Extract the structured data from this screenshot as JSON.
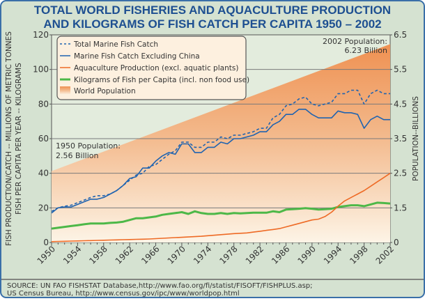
{
  "chart_data": {
    "type": "line",
    "title": [
      "TOTAL WORLD FISHERIES AND AQUACULTURE PRODUCTION",
      "AND KILOGRAMS OF FISH CATCH PER CAPITA 1950 – 2002"
    ],
    "ylabel_left": [
      "FISH PRODUCTION/CATCH -- MILLIONS OF METRIC TONNES",
      "FISH PER CAPITA PER YEAR -- KILOGRAMS"
    ],
    "ylabel_right": "POPULATION--BILLIONS",
    "xlim": [
      1950,
      2002
    ],
    "ylim_left": [
      0,
      120
    ],
    "yticks_left": [
      "0",
      "20",
      "40",
      "60",
      "80",
      "100",
      "120"
    ],
    "yticks_right": [
      "0",
      "1.5",
      "2.5",
      "3.5",
      "4.5",
      "5.5",
      "6.5"
    ],
    "xticks": [
      "1950",
      "1954",
      "1958",
      "1962",
      "1966",
      "1970",
      "1974",
      "1978",
      "1982",
      "1986",
      "1990",
      "1994",
      "1998",
      "2002"
    ],
    "grid": true,
    "legend_position": "top-left",
    "x": [
      1950,
      1951,
      1952,
      1953,
      1954,
      1955,
      1956,
      1957,
      1958,
      1959,
      1960,
      1961,
      1962,
      1963,
      1964,
      1965,
      1966,
      1967,
      1968,
      1969,
      1970,
      1971,
      1972,
      1973,
      1974,
      1975,
      1976,
      1977,
      1978,
      1979,
      1980,
      1981,
      1982,
      1983,
      1984,
      1985,
      1986,
      1987,
      1988,
      1989,
      1990,
      1991,
      1992,
      1993,
      1994,
      1995,
      1996,
      1997,
      1998,
      1999,
      2000,
      2001,
      2002
    ],
    "series": [
      {
        "name": "Total Marine Fish Catch",
        "color": "#1f63b0",
        "style": "dashed",
        "values": [
          18,
          20,
          21,
          21.5,
          23,
          24.5,
          26,
          27,
          27,
          28,
          30,
          33,
          36,
          39,
          40,
          44,
          45,
          48,
          51,
          53,
          58,
          58,
          55,
          55,
          58,
          58,
          61,
          60,
          62,
          62,
          63,
          64,
          66,
          66,
          72,
          74,
          79,
          80,
          83,
          84,
          80,
          79,
          80,
          81,
          86,
          86,
          88,
          88,
          80,
          86,
          88,
          86,
          86
        ]
      },
      {
        "name": "Marine Fish Catch Excluding China",
        "color": "#1f63b0",
        "style": "solid",
        "values": [
          17,
          20,
          20.5,
          20.5,
          22,
          23.5,
          25,
          25,
          26,
          28,
          30,
          33,
          37,
          38,
          43,
          43,
          47,
          50,
          52,
          51,
          57,
          57,
          52,
          52,
          55,
          55,
          58,
          57,
          60,
          60,
          61,
          62,
          64,
          64,
          68,
          70,
          74,
          74,
          77,
          77,
          74,
          72,
          72,
          72,
          76,
          75,
          75,
          74,
          66,
          71,
          73,
          71,
          71
        ]
      },
      {
        "name": "Aquaculture Production (excl. aquatic plants)",
        "color": "#ee6a25",
        "style": "solid",
        "values": [
          0.5,
          0.6,
          0.7,
          0.8,
          0.9,
          1,
          1.1,
          1.2,
          1.3,
          1.4,
          1.5,
          1.6,
          1.7,
          1.8,
          1.9,
          2,
          2.2,
          2.4,
          2.6,
          2.8,
          3,
          3.2,
          3.4,
          3.6,
          3.9,
          4.2,
          4.5,
          4.8,
          5.1,
          5.3,
          5.5,
          6,
          6.5,
          7,
          7.5,
          8,
          9,
          10,
          11,
          12,
          13,
          13.5,
          15,
          17.5,
          21,
          24,
          26,
          28,
          30,
          32.5,
          35,
          37.5,
          40
        ]
      },
      {
        "name": "Kilograms of Fish per Capita (incl. non food use)",
        "color": "#4db848",
        "style": "solid",
        "values": [
          8,
          8.5,
          9,
          9.5,
          10,
          10.5,
          11,
          11,
          11,
          11.3,
          11.5,
          12,
          13,
          14,
          14,
          14.5,
          15,
          16,
          16.5,
          17,
          17.5,
          16.5,
          18,
          17,
          16.5,
          16.5,
          17,
          16.5,
          17,
          16.8,
          17,
          17.2,
          17.2,
          17.2,
          18,
          17.5,
          19,
          19.2,
          19.5,
          19.8,
          19.5,
          19,
          19.2,
          19.5,
          20.5,
          21,
          21.5,
          21.5,
          21,
          22,
          23,
          22.8,
          22.5
        ]
      },
      {
        "name": "World Population",
        "color": "#ee9a5c",
        "style": "area",
        "unit": "billions",
        "x": [
          1950,
          2002
        ],
        "values": [
          2.56,
          6.23
        ]
      }
    ],
    "annotations": [
      {
        "lines": [
          "1950 Population:",
          "2.56 Billion"
        ]
      },
      {
        "lines": [
          "2002 Population:",
          "6.23 Billion"
        ]
      }
    ]
  },
  "source": [
    "SOURCE: UN FAO FISHSTAT Database,http://www.fao.org/fi/statist/FISOFT/FISHPLUS.asp;",
    "US Census Bureau, http://www.census.gov/ipc/www/worldpop.html"
  ]
}
